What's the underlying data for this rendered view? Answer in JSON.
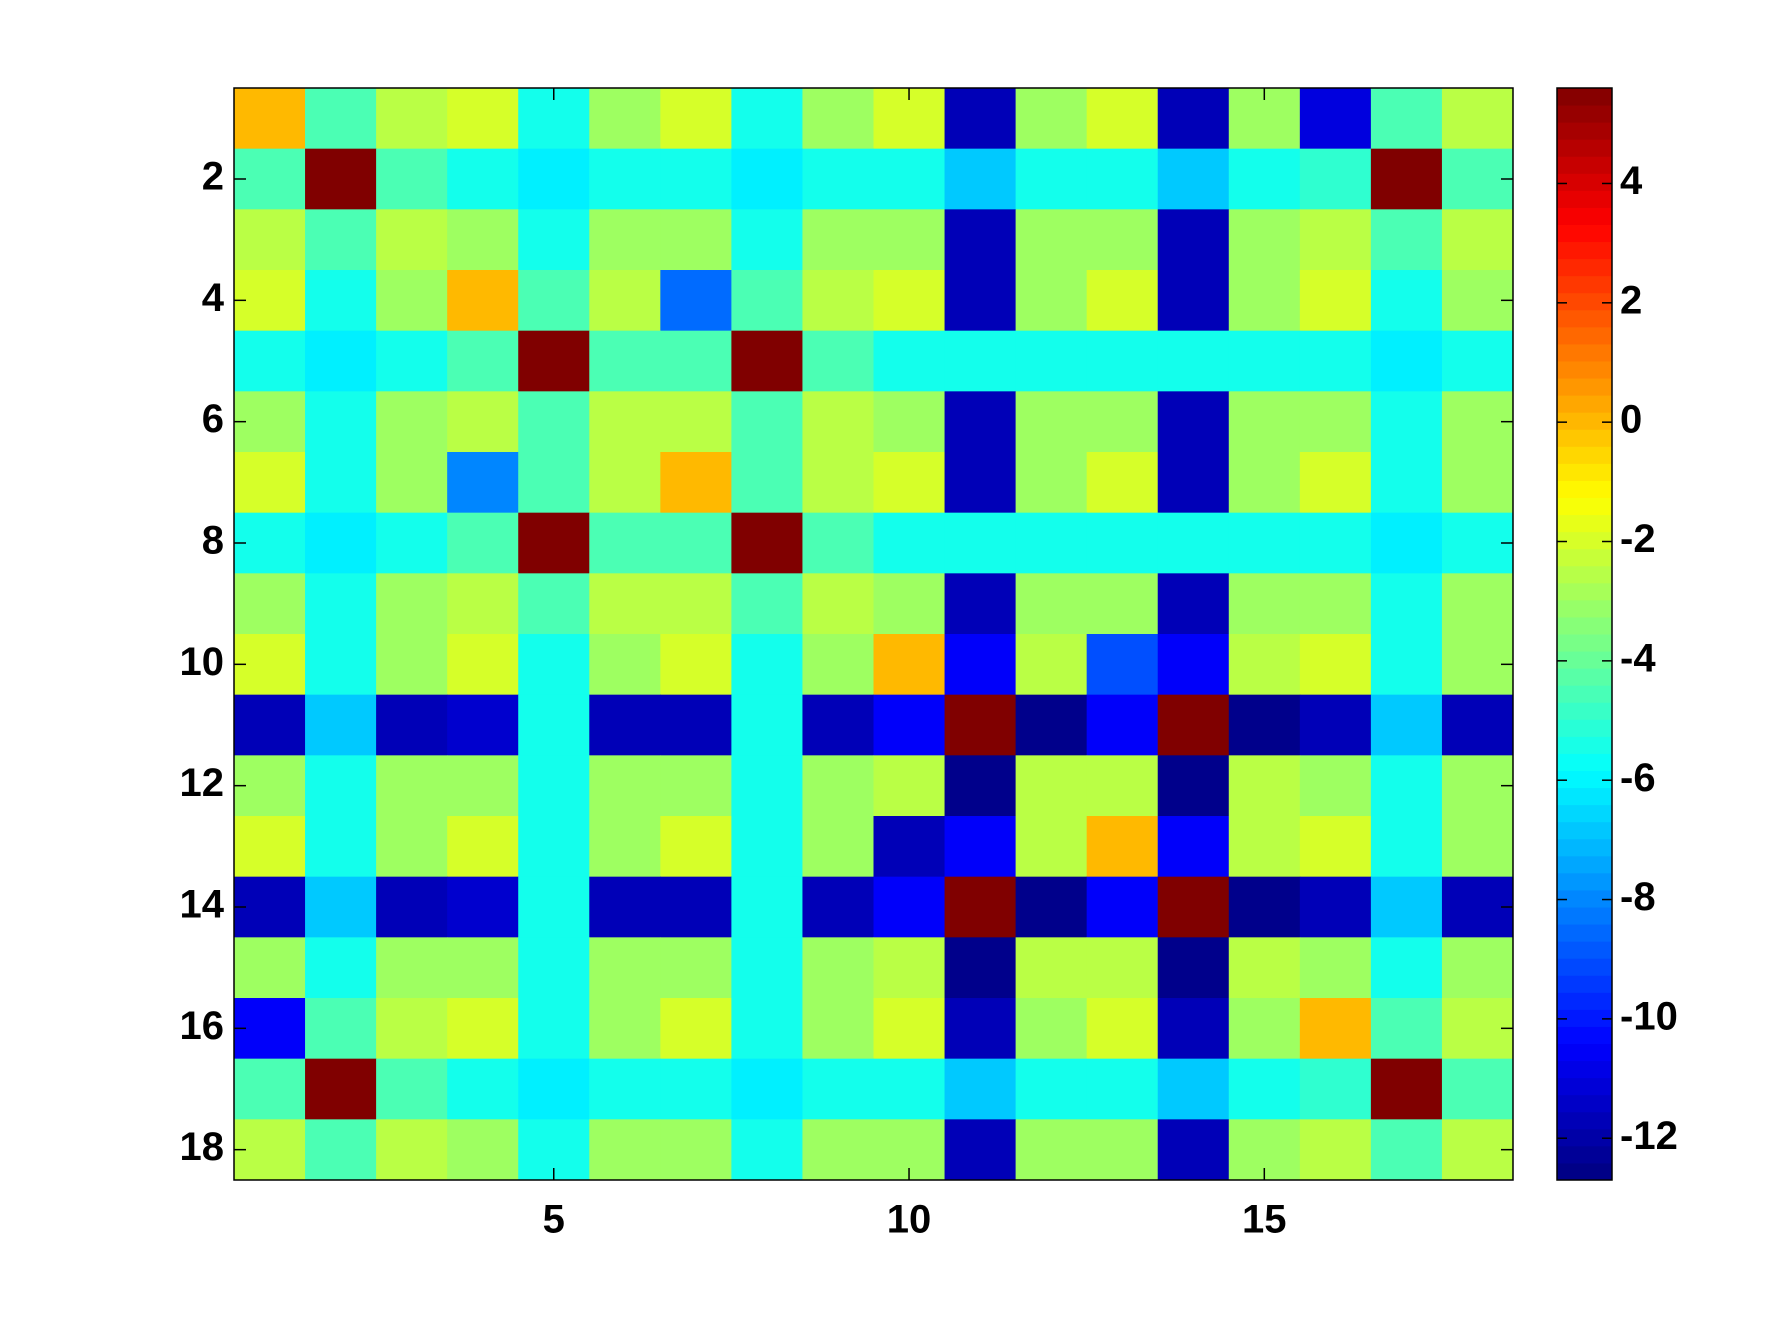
{
  "chart_data": {
    "type": "heatmap",
    "colormap": "jet",
    "xlim": [
      0.5,
      18.5
    ],
    "ylim": [
      18.5,
      0.5
    ],
    "xticks": [
      5,
      10,
      15
    ],
    "yticks": [
      2,
      4,
      6,
      8,
      10,
      12,
      14,
      16,
      18
    ],
    "z": [
      [
        0,
        -4.5,
        -2.5,
        -2,
        -5.5,
        -3,
        -2,
        -5.5,
        -3,
        -2,
        -11.7,
        -3,
        -2,
        -11.7,
        -3,
        -11,
        -4.5,
        -2.5
      ],
      [
        -4.5,
        5.6,
        -4.5,
        -5.5,
        -6.1,
        -5.5,
        -5.5,
        -6.1,
        -5.5,
        -5.5,
        -6.8,
        -5.5,
        -5.5,
        -6.8,
        -5.5,
        -5,
        5.6,
        -4.5
      ],
      [
        -2.5,
        -4.5,
        -2.5,
        -3,
        -5.5,
        -3,
        -3,
        -5.5,
        -3,
        -3,
        -11.7,
        -3,
        -3,
        -11.7,
        -3,
        -2.5,
        -4.5,
        -2.5
      ],
      [
        -2,
        -5.5,
        -3,
        0,
        -4.5,
        -2.5,
        -8.5,
        -4.5,
        -2.5,
        -2,
        -11.7,
        -3,
        -2,
        -11.7,
        -3,
        -2,
        -5.5,
        -3
      ],
      [
        -5.5,
        -6.1,
        -5.5,
        -4.5,
        5.6,
        -4.5,
        -4.5,
        5.6,
        -4.5,
        -5.5,
        -5.5,
        -5.5,
        -5.5,
        -5.5,
        -5.5,
        -5.5,
        -6.1,
        -5.5
      ],
      [
        -3,
        -5.5,
        -3,
        -2.5,
        -4.5,
        -2.5,
        -2.5,
        -4.5,
        -2.5,
        -3,
        -11.7,
        -3,
        -3,
        -11.7,
        -3,
        -3,
        -5.5,
        -3
      ],
      [
        -2,
        -5.5,
        -3,
        -8,
        -4.5,
        -2.5,
        0,
        -4.5,
        -2.5,
        -2,
        -11.7,
        -3,
        -2,
        -11.7,
        -3,
        -2,
        -5.5,
        -3
      ],
      [
        -5.5,
        -6.1,
        -5.5,
        -4.5,
        5.6,
        -4.5,
        -4.5,
        5.6,
        -4.5,
        -5.5,
        -5.5,
        -5.5,
        -5.5,
        -5.5,
        -5.5,
        -5.5,
        -6.1,
        -5.5
      ],
      [
        -3,
        -5.5,
        -3,
        -2.5,
        -4.5,
        -2.5,
        -2.5,
        -4.5,
        -2.5,
        -3,
        -11.7,
        -3,
        -3,
        -11.7,
        -3,
        -3,
        -5.5,
        -3
      ],
      [
        -2,
        -5.5,
        -3,
        -2,
        -5.5,
        -3,
        -2,
        -5.5,
        -3,
        0,
        -10.5,
        -2.5,
        -9,
        -10.5,
        -2.5,
        -2,
        -5.5,
        -3
      ],
      [
        -11.7,
        -6.8,
        -11.7,
        -11.3,
        -5.5,
        -11.7,
        -11.7,
        -5.5,
        -11.7,
        -10.5,
        5.6,
        -12.5,
        -10.5,
        5.6,
        -12.5,
        -11.7,
        -6.8,
        -11.7
      ],
      [
        -3,
        -5.5,
        -3,
        -3,
        -5.5,
        -3,
        -3,
        -5.5,
        -3,
        -2.5,
        -12.5,
        -2.5,
        -2.5,
        -12.5,
        -2.5,
        -3,
        -5.5,
        -3
      ],
      [
        -2,
        -5.5,
        -3,
        -2,
        -5.5,
        -3,
        -2,
        -5.5,
        -3,
        -11.7,
        -10.5,
        -2.5,
        0,
        -10.5,
        -2.5,
        -2,
        -5.5,
        -3
      ],
      [
        -11.7,
        -6.8,
        -11.7,
        -11.3,
        -5.5,
        -11.7,
        -11.7,
        -5.5,
        -11.7,
        -10.5,
        5.6,
        -12.5,
        -10.5,
        5.6,
        -12.5,
        -11.7,
        -6.8,
        -11.7
      ],
      [
        -3,
        -5.5,
        -3,
        -3,
        -5.5,
        -3,
        -3,
        -5.5,
        -3,
        -2.5,
        -12.5,
        -2.5,
        -2.5,
        -12.5,
        -2.5,
        -3,
        -5.5,
        -3
      ],
      [
        -10.5,
        -4.5,
        -2.5,
        -2,
        -5.5,
        -3,
        -2,
        -5.5,
        -3,
        -2,
        -11.7,
        -3,
        -2,
        -11.7,
        -3,
        0,
        -4.5,
        -2.5
      ],
      [
        -4.5,
        5.6,
        -4.5,
        -5.5,
        -6.1,
        -5.5,
        -5.5,
        -6.1,
        -5.5,
        -5.5,
        -6.8,
        -5.5,
        -5.5,
        -6.8,
        -5.5,
        -5,
        5.6,
        -4.5
      ],
      [
        -2.5,
        -4.5,
        -2.5,
        -3,
        -5.5,
        -3,
        -3,
        -5.5,
        -3,
        -3,
        -11.7,
        -3,
        -3,
        -11.7,
        -3,
        -2.5,
        -4.5,
        -2.5
      ]
    ],
    "colorbar": {
      "lim": [
        -12.7,
        5.6
      ],
      "ticks": [
        -12,
        -10,
        -8,
        -6,
        -4,
        -2,
        0,
        2,
        4
      ]
    }
  }
}
